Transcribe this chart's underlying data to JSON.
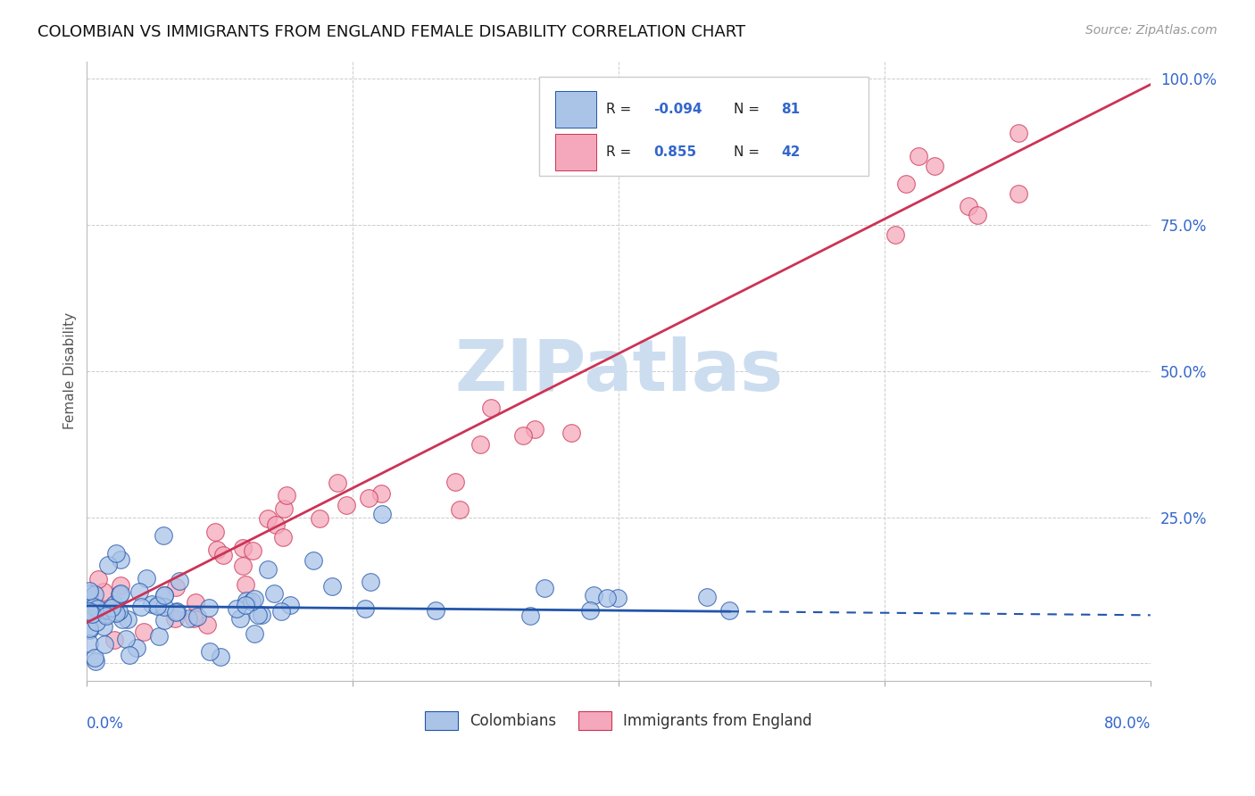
{
  "title": "COLOMBIAN VS IMMIGRANTS FROM ENGLAND FEMALE DISABILITY CORRELATION CHART",
  "source": "Source: ZipAtlas.com",
  "ylabel": "Female Disability",
  "xlim": [
    0.0,
    0.8
  ],
  "ylim": [
    -0.03,
    1.03
  ],
  "colombians_R": -0.094,
  "colombians_N": 81,
  "england_R": 0.855,
  "england_N": 42,
  "colombian_color": "#aac4e8",
  "england_color": "#f5a8bb",
  "colombian_line_color": "#2255aa",
  "england_line_color": "#cc3355",
  "watermark": "ZIPatlas",
  "watermark_color": "#ccddf0",
  "background_color": "#ffffff",
  "grid_color": "#cccccc",
  "title_color": "#111111",
  "axis_label_color": "#3366cc",
  "legend_text_color": "#111111",
  "source_color": "#999999"
}
